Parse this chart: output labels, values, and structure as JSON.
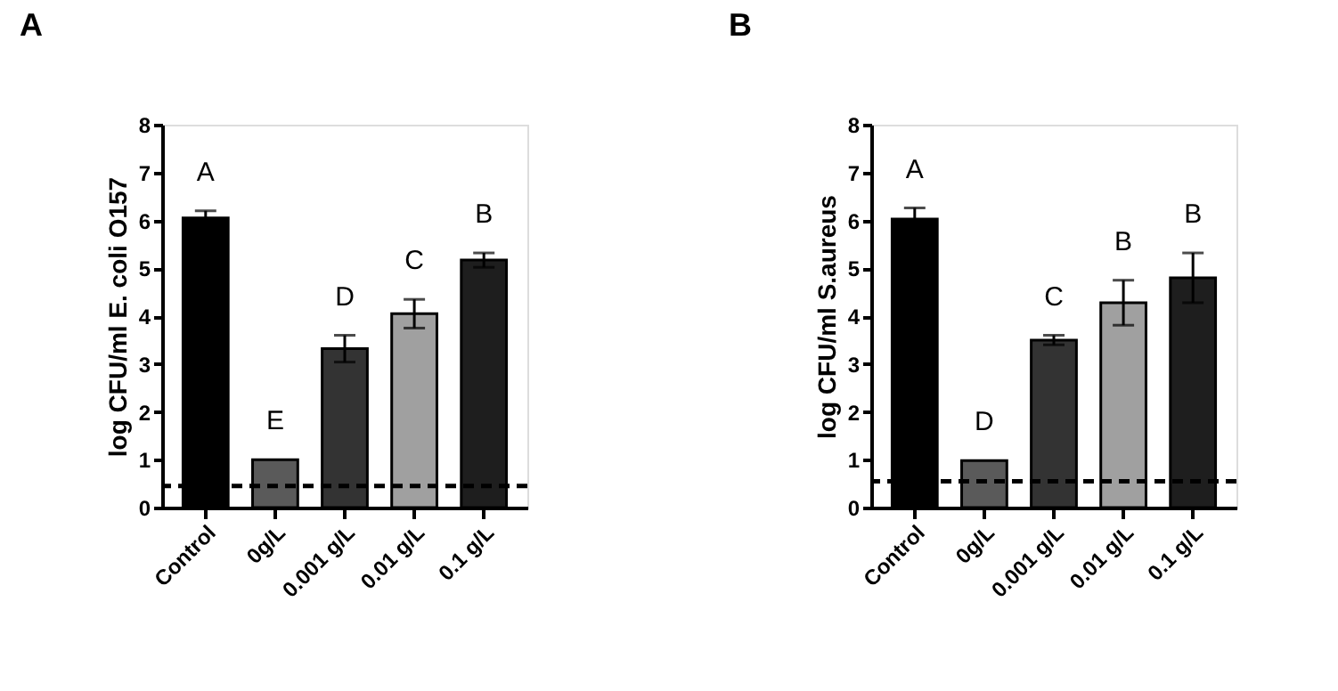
{
  "chart_data": [
    {
      "type": "bar",
      "title": "A",
      "ylabel": "log CFU/ml E. coli O157",
      "categories": [
        "Control",
        "0g/L",
        "0.001 g/L",
        "0.01 g/L",
        "0.1 g/L"
      ],
      "values": [
        6.05,
        1.0,
        3.32,
        4.05,
        5.17
      ],
      "errors": [
        0.15,
        null,
        0.28,
        0.3,
        0.15
      ],
      "colors": [
        "#000000",
        "#5a5a5a",
        "#333333",
        "#a0a0a0",
        "#1e1e1e"
      ],
      "ylim": [
        0,
        8
      ],
      "yticks": [
        0,
        1,
        2,
        3,
        4,
        5,
        6,
        7,
        8
      ],
      "grid": false,
      "ref_lines": [
        {
          "axis": "y",
          "value": 0.45,
          "line_style": "dashed",
          "color": "#000000"
        }
      ],
      "annotations": [
        "A",
        "E",
        "D",
        "C",
        "B"
      ]
    },
    {
      "type": "bar",
      "title": "B",
      "ylabel": "log CFU/ml S.aureus",
      "categories": [
        "Control",
        "0g/L",
        "0.001 g/L",
        "0.01 g/L",
        "0.1 g/L"
      ],
      "values": [
        6.03,
        0.98,
        3.5,
        4.28,
        4.8
      ],
      "errors": [
        0.23,
        null,
        0.1,
        0.47,
        0.52
      ],
      "colors": [
        "#000000",
        "#5a5a5a",
        "#333333",
        "#a0a0a0",
        "#1e1e1e"
      ],
      "ylim": [
        0,
        8
      ],
      "yticks": [
        0,
        1,
        2,
        3,
        4,
        5,
        6,
        7,
        8
      ],
      "grid": false,
      "ref_lines": [
        {
          "axis": "y",
          "value": 0.55,
          "line_style": "dashed",
          "color": "#000000"
        }
      ],
      "annotations": [
        "A",
        "D",
        "C",
        "B",
        "B"
      ]
    }
  ]
}
